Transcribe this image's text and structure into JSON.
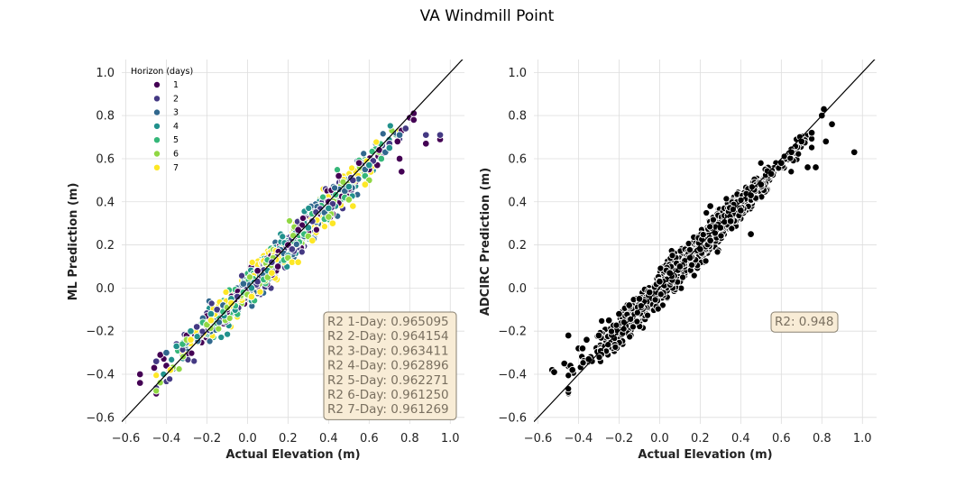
{
  "title": "VA Windmill Point",
  "colors": {
    "viridis": [
      "#440154",
      "#443983",
      "#31688e",
      "#21918c",
      "#35b779",
      "#90d743",
      "#fde725"
    ],
    "adcirc": "#000000",
    "grid": "#dddddd",
    "box_fill": "#f8ecd6",
    "box_edge": "#888070"
  },
  "chart_data": [
    {
      "type": "scatter",
      "xlabel": "Actual Elevation (m)",
      "ylabel": "ML Prediction (m)",
      "xlim": [
        -0.62,
        1.07
      ],
      "ylim": [
        -0.63,
        1.06
      ],
      "xticks": [
        -0.6,
        -0.4,
        -0.2,
        0.0,
        0.2,
        0.4,
        0.6,
        0.8,
        1.0
      ],
      "yticks": [
        -0.6,
        -0.4,
        -0.2,
        0.0,
        0.2,
        0.4,
        0.6,
        0.8,
        1.0
      ],
      "tick_labels": [
        "−0.6",
        "−0.4",
        "−0.2",
        "0.0",
        "0.2",
        "0.4",
        "0.6",
        "0.8",
        "1.0"
      ],
      "grid": true,
      "reference_line": "y = x",
      "legend": {
        "title": "Horizon (days)",
        "placement": "top-left",
        "entries": [
          "1",
          "2",
          "3",
          "4",
          "5",
          "6",
          "7"
        ]
      },
      "series": [
        {
          "name": "1",
          "points": [
            [
              -0.53,
              -0.4
            ],
            [
              -0.53,
              -0.44
            ],
            [
              -0.46,
              -0.37
            ],
            [
              -0.43,
              -0.31
            ],
            [
              -0.4,
              -0.36
            ],
            [
              -0.3,
              -0.22
            ],
            [
              -0.2,
              -0.13
            ],
            [
              -0.1,
              -0.1
            ],
            [
              0.0,
              -0.02
            ],
            [
              0.05,
              0.08
            ],
            [
              0.15,
              0.1
            ],
            [
              0.2,
              0.2
            ],
            [
              0.25,
              0.27
            ],
            [
              0.3,
              0.26
            ],
            [
              0.4,
              0.4
            ],
            [
              0.45,
              0.52
            ],
            [
              0.5,
              0.46
            ],
            [
              0.55,
              0.58
            ],
            [
              0.6,
              0.55
            ],
            [
              0.65,
              0.64
            ],
            [
              0.7,
              0.66
            ],
            [
              0.74,
              0.68
            ],
            [
              0.76,
              0.73
            ],
            [
              0.8,
              0.79
            ],
            [
              0.82,
              0.81
            ],
            [
              0.82,
              0.78
            ],
            [
              0.95,
              0.69
            ],
            [
              0.88,
              0.67
            ],
            [
              0.75,
              0.6
            ],
            [
              0.76,
              0.54
            ],
            [
              0.64,
              0.57
            ]
          ]
        },
        {
          "name": "2",
          "points": [
            [
              -0.45,
              -0.34
            ],
            [
              -0.35,
              -0.26
            ],
            [
              -0.25,
              -0.18
            ],
            [
              -0.15,
              -0.1
            ],
            [
              -0.05,
              -0.04
            ],
            [
              0.05,
              0.03
            ],
            [
              0.12,
              0.12
            ],
            [
              0.22,
              0.18
            ],
            [
              0.32,
              0.31
            ],
            [
              0.42,
              0.39
            ],
            [
              0.52,
              0.5
            ],
            [
              0.62,
              0.59
            ],
            [
              0.7,
              0.67
            ],
            [
              0.78,
              0.74
            ],
            [
              0.95,
              0.71
            ],
            [
              0.88,
              0.71
            ]
          ]
        },
        {
          "name": "3",
          "points": [
            [
              -0.4,
              -0.3
            ],
            [
              -0.3,
              -0.25
            ],
            [
              -0.22,
              -0.14
            ],
            [
              -0.12,
              -0.08
            ],
            [
              -0.02,
              0.02
            ],
            [
              0.08,
              0.06
            ],
            [
              0.18,
              0.16
            ],
            [
              0.28,
              0.24
            ],
            [
              0.38,
              0.35
            ],
            [
              0.48,
              0.45
            ],
            [
              0.58,
              0.55
            ],
            [
              0.68,
              0.63
            ],
            [
              0.75,
              0.71
            ]
          ]
        },
        {
          "name": "4",
          "points": [
            [
              -0.35,
              -0.27
            ],
            [
              -0.28,
              -0.2
            ],
            [
              -0.18,
              -0.12
            ],
            [
              -0.08,
              -0.05
            ],
            [
              0.02,
              0.0
            ],
            [
              0.1,
              0.08
            ],
            [
              0.2,
              0.15
            ],
            [
              0.3,
              0.28
            ],
            [
              0.4,
              0.37
            ],
            [
              0.5,
              0.47
            ],
            [
              0.6,
              0.57
            ],
            [
              0.7,
              0.65
            ]
          ]
        },
        {
          "name": "5",
          "points": [
            [
              -0.32,
              -0.26
            ],
            [
              -0.22,
              -0.16
            ],
            [
              -0.12,
              -0.11
            ],
            [
              -0.02,
              -0.02
            ],
            [
              0.08,
              0.04
            ],
            [
              0.18,
              0.13
            ],
            [
              0.28,
              0.25
            ],
            [
              0.38,
              0.32
            ],
            [
              0.48,
              0.42
            ],
            [
              0.58,
              0.52
            ],
            [
              0.66,
              0.6
            ]
          ]
        },
        {
          "name": "6",
          "points": [
            [
              -0.3,
              -0.24
            ],
            [
              -0.2,
              -0.17
            ],
            [
              -0.1,
              -0.09
            ],
            [
              0.0,
              -0.03
            ],
            [
              0.1,
              0.05
            ],
            [
              0.2,
              0.14
            ],
            [
              0.3,
              0.24
            ],
            [
              0.4,
              0.33
            ],
            [
              0.5,
              0.41
            ],
            [
              0.6,
              0.5
            ]
          ]
        },
        {
          "name": "7",
          "points": [
            [
              -0.28,
              -0.24
            ],
            [
              -0.18,
              -0.15
            ],
            [
              -0.08,
              -0.07
            ],
            [
              0.02,
              -0.04
            ],
            [
              0.12,
              0.07
            ],
            [
              0.22,
              0.12
            ],
            [
              0.32,
              0.22
            ],
            [
              0.42,
              0.3
            ],
            [
              0.52,
              0.38
            ],
            [
              0.58,
              0.48
            ],
            [
              -0.38,
              -0.38
            ],
            [
              0.25,
              0.12
            ]
          ]
        }
      ],
      "annotation": [
        "R2 1-Day: 0.965095",
        "R2 2-Day: 0.964154",
        "R2 3-Day: 0.963411",
        "R2 4-Day: 0.962896",
        "R2 5-Day: 0.962271",
        "R2 6-Day: 0.961250",
        "R2 7-Day: 0.961269"
      ],
      "annotation_placement": "bottom-right"
    },
    {
      "type": "scatter",
      "xlabel": "Actual Elevation (m)",
      "ylabel": "ADCIRC Prediction (m)",
      "xlim": [
        -0.62,
        1.07
      ],
      "ylim": [
        -0.63,
        1.06
      ],
      "xticks": [
        -0.6,
        -0.4,
        -0.2,
        0.0,
        0.2,
        0.4,
        0.6,
        0.8,
        1.0
      ],
      "yticks": [
        -0.6,
        -0.4,
        -0.2,
        0.0,
        0.2,
        0.4,
        0.6,
        0.8,
        1.0
      ],
      "tick_labels": [
        "−0.6",
        "−0.4",
        "−0.2",
        "0.0",
        "0.2",
        "0.4",
        "0.6",
        "0.8",
        "1.0"
      ],
      "grid": true,
      "reference_line": "y = x",
      "series": [
        {
          "name": "",
          "points": [
            [
              -0.53,
              -0.38
            ],
            [
              -0.52,
              -0.39
            ],
            [
              -0.47,
              -0.35
            ],
            [
              -0.45,
              -0.22
            ],
            [
              -0.44,
              -0.36
            ],
            [
              -0.43,
              -0.38
            ],
            [
              -0.4,
              -0.28
            ],
            [
              -0.36,
              -0.24
            ],
            [
              -0.34,
              -0.32
            ],
            [
              -0.3,
              -0.22
            ],
            [
              -0.25,
              -0.15
            ],
            [
              -0.2,
              -0.12
            ],
            [
              -0.15,
              -0.08
            ],
            [
              -0.1,
              -0.05
            ],
            [
              -0.05,
              -0.02
            ],
            [
              0.0,
              0.03
            ],
            [
              0.05,
              0.07
            ],
            [
              0.1,
              0.1
            ],
            [
              0.15,
              0.14
            ],
            [
              0.2,
              0.18
            ],
            [
              0.25,
              0.22
            ],
            [
              0.3,
              0.28
            ],
            [
              0.35,
              0.31
            ],
            [
              0.4,
              0.36
            ],
            [
              0.45,
              0.43
            ],
            [
              0.5,
              0.48
            ],
            [
              0.55,
              0.53
            ],
            [
              0.6,
              0.58
            ],
            [
              0.65,
              0.63
            ],
            [
              0.7,
              0.68
            ],
            [
              0.75,
              0.72
            ],
            [
              0.8,
              0.8
            ],
            [
              0.81,
              0.83
            ],
            [
              0.85,
              0.76
            ],
            [
              0.82,
              0.68
            ],
            [
              0.77,
              0.56
            ],
            [
              0.73,
              0.56
            ],
            [
              0.96,
              0.63
            ],
            [
              0.45,
              0.25
            ],
            [
              0.25,
              0.38
            ],
            [
              -0.35,
              -0.33
            ],
            [
              -0.38,
              -0.28
            ]
          ]
        }
      ],
      "annotation": [
        "R2: 0.948"
      ],
      "annotation_placement": "center-right"
    }
  ]
}
